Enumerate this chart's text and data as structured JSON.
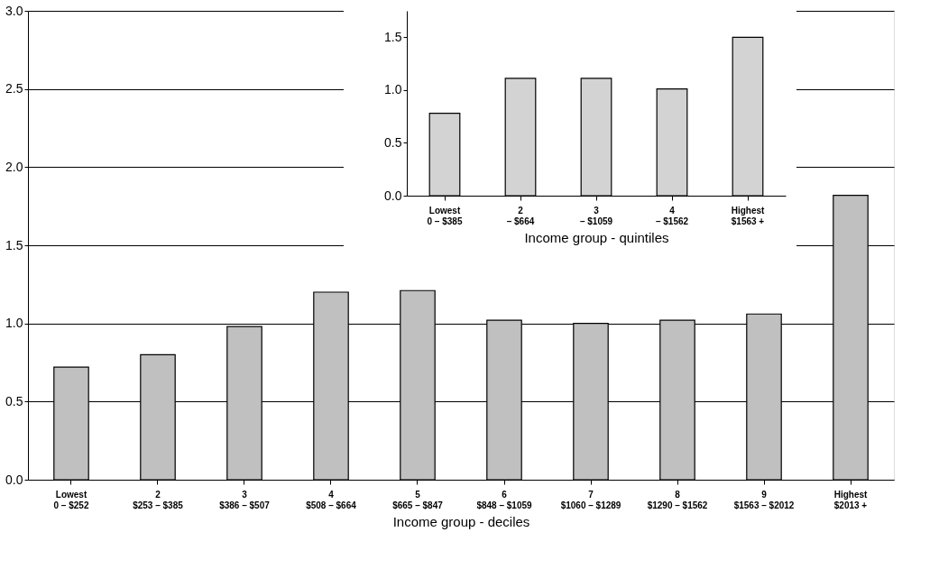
{
  "chart_data": [
    {
      "type": "bar",
      "xlabel": "Income group - deciles",
      "categories": [
        "Lowest\n0 – $252",
        "2\n$253 – $385",
        "3\n$386 – $507",
        "4\n$508 – $664",
        "5\n$665 – $847",
        "6\n$848 – $1059",
        "7\n$1060 – $1289",
        "8\n$1290 – $1562",
        "9\n$1563 – $2012",
        "Highest\n$2013 +"
      ],
      "values": [
        0.72,
        0.8,
        0.98,
        1.2,
        1.21,
        1.02,
        1.0,
        1.02,
        1.06,
        1.82
      ],
      "color": "#c0c0c0",
      "ylim": [
        0,
        3
      ],
      "yticks": [
        {
          "value": 0,
          "label": "0.0"
        },
        0.5,
        {
          "value": 1,
          "label": "1.0"
        },
        1.5,
        {
          "value": 2,
          "label": "2.0"
        },
        2.5,
        {
          "value": 3,
          "label": "3.0"
        }
      ],
      "grid": "y"
    },
    {
      "type": "bar",
      "xlabel": "Income group - quintiles",
      "categories": [
        "Lowest\n0 – $385",
        "2\n– $664",
        "3\n– $1059",
        "4\n– $1562",
        "Highest\n$1563 +"
      ],
      "values": [
        0.78,
        1.11,
        1.11,
        1.01,
        1.5
      ],
      "color": "#d3d3d3",
      "ylim": [
        0,
        1.75
      ],
      "yticks": [
        {
          "value": 0,
          "label": "0.0"
        },
        0.5,
        {
          "value": 1,
          "label": "1.0"
        },
        1.5
      ],
      "grid": false
    }
  ]
}
